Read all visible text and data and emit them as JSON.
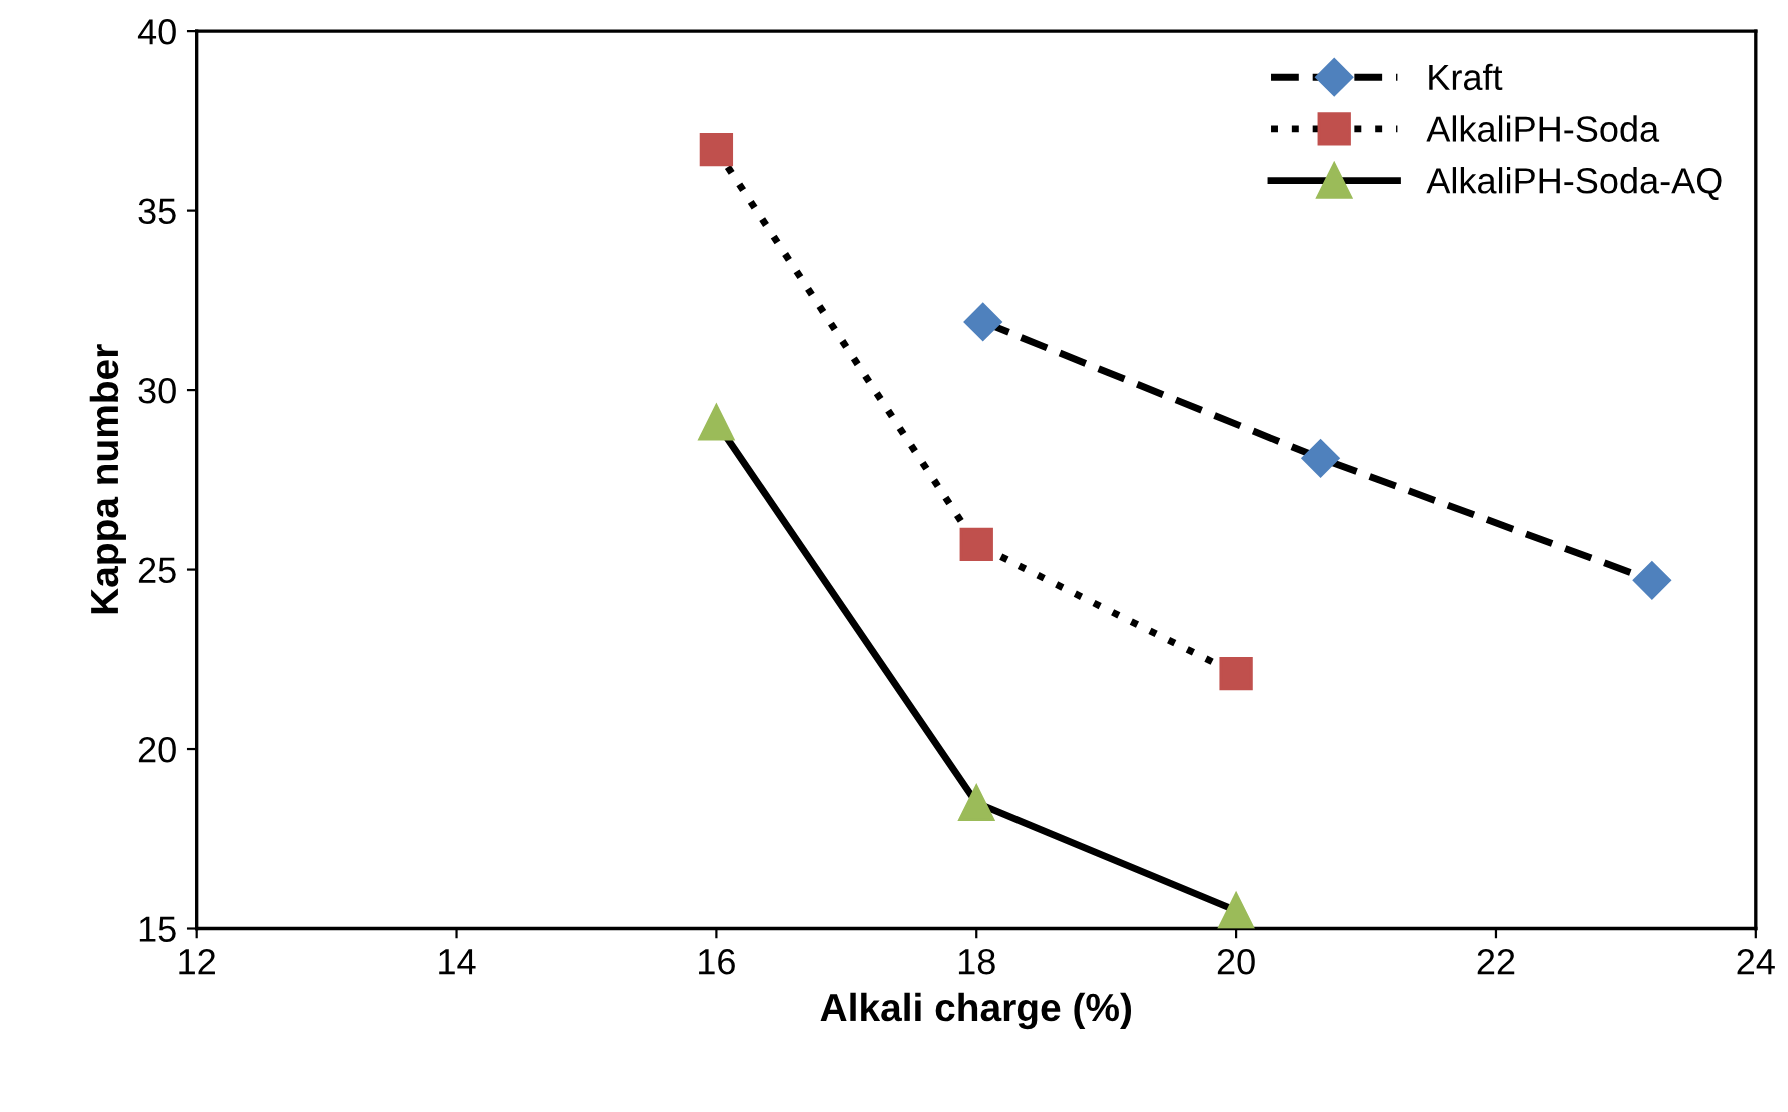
{
  "chart_data": {
    "type": "line",
    "xlabel": "Alkali charge (%)",
    "ylabel": "Kappa number",
    "xlim": [
      12,
      24
    ],
    "xticks": [
      12,
      14,
      16,
      18,
      20,
      22,
      24
    ],
    "ylim": [
      15,
      40
    ],
    "yticks": [
      15,
      20,
      25,
      30,
      35,
      40
    ],
    "grid": false,
    "legend": "top right",
    "series": [
      {
        "name": "Kraft",
        "color": "#4f81bd",
        "marker": "diamond",
        "line_style": "dashed",
        "x": [
          18.05,
          20.65,
          23.2
        ],
        "values": [
          31.9,
          28.1,
          24.7
        ]
      },
      {
        "name": "AlkaliPH-Soda",
        "color": "#c0504d",
        "marker": "square",
        "line_style": "dotted",
        "x": [
          16,
          18,
          20
        ],
        "values": [
          36.7,
          25.7,
          22.1
        ]
      },
      {
        "name": "AlkaliPH-Soda-AQ",
        "color": "#9bbb59",
        "marker": "triangle",
        "line_style": "solid",
        "x": [
          16,
          18,
          20
        ],
        "values": [
          29.1,
          18.5,
          15.5
        ]
      }
    ]
  }
}
